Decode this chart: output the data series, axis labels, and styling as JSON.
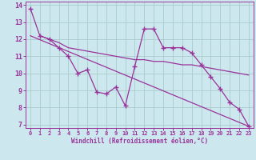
{
  "xlabel": "Windchill (Refroidissement éolien,°C)",
  "background_color": "#cce8ee",
  "grid_color": "#aacccc",
  "line_color": "#993399",
  "xlim": [
    -0.5,
    23.5
  ],
  "ylim": [
    6.8,
    14.2
  ],
  "yticks": [
    7,
    8,
    9,
    10,
    11,
    12,
    13,
    14
  ],
  "xticks": [
    0,
    1,
    2,
    3,
    4,
    5,
    6,
    7,
    8,
    9,
    10,
    11,
    12,
    13,
    14,
    15,
    16,
    17,
    18,
    19,
    20,
    21,
    22,
    23
  ],
  "series1_x": [
    0,
    1,
    2,
    3,
    4,
    5,
    6,
    7,
    8,
    9,
    10,
    11,
    12,
    13,
    14,
    15,
    16,
    17,
    18,
    19,
    20,
    21,
    22,
    23
  ],
  "series1_y": [
    13.8,
    12.2,
    12.0,
    11.5,
    11.0,
    10.0,
    10.2,
    8.9,
    8.8,
    9.2,
    8.1,
    10.4,
    12.6,
    12.6,
    11.5,
    11.5,
    11.5,
    11.2,
    10.5,
    9.8,
    9.1,
    8.3,
    7.9,
    6.9
  ],
  "series2_x": [
    1,
    2,
    3,
    4,
    5,
    6,
    7,
    8,
    9,
    10,
    11,
    12,
    13,
    14,
    15,
    16,
    17,
    18,
    19,
    20,
    21,
    22,
    23
  ],
  "series2_y": [
    12.2,
    12.0,
    11.8,
    11.5,
    11.4,
    11.3,
    11.2,
    11.1,
    11.0,
    10.9,
    10.8,
    10.8,
    10.7,
    10.7,
    10.6,
    10.5,
    10.5,
    10.4,
    10.3,
    10.2,
    10.1,
    10.0,
    9.9
  ],
  "series3_x": [
    0,
    23
  ],
  "series3_y": [
    12.2,
    6.9
  ]
}
